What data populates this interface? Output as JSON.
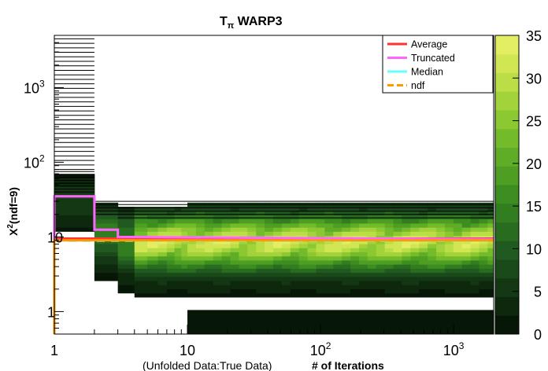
{
  "chart_data": {
    "type": "heatmap",
    "title": "T",
    "title_subscript": "π",
    "title_suffix": " WARP3",
    "xlabel_prefix": "(Unfolded Data:True Data)",
    "xlabel": "# of Iterations",
    "ylabel": "χ²(ndf=9)",
    "ylabel_parts": {
      "main": "X",
      "sup": "2",
      "rest": "(ndf=9)"
    },
    "x_scale": "log",
    "y_scale": "log",
    "xlim": [
      1,
      2000
    ],
    "ylim": [
      0.5,
      5000
    ],
    "x_ticks": [
      {
        "value": 1,
        "base": "1",
        "exp": ""
      },
      {
        "value": 10,
        "base": "10",
        "exp": ""
      },
      {
        "value": 100,
        "base": "10",
        "exp": "2"
      },
      {
        "value": 1000,
        "base": "10",
        "exp": "3"
      }
    ],
    "y_ticks": [
      {
        "value": 1,
        "base": "1",
        "exp": ""
      },
      {
        "value": 10,
        "base": "10",
        "exp": ""
      },
      {
        "value": 100,
        "base": "10",
        "exp": "2"
      },
      {
        "value": 1000,
        "base": "10",
        "exp": "3"
      }
    ],
    "colorbar": {
      "min": 0,
      "max": 35,
      "ticks": [
        "0",
        "5",
        "10",
        "15",
        "20",
        "25",
        "30",
        "35"
      ],
      "colors": [
        "#071707",
        "#0d280d",
        "#133813",
        "#1a491a",
        "#205a20",
        "#286c1f",
        "#327d1f",
        "#3d8e20",
        "#4d9e22",
        "#5fad26",
        "#74bb2b",
        "#8bc832",
        "#a3d33a",
        "#bbdd45",
        "#d1e653",
        "#e4ee63"
      ]
    },
    "series": [
      {
        "name": "Average",
        "color": "#ff3333",
        "x": [
          1,
          2,
          3,
          2000
        ],
        "y": [
          9.5,
          9.5,
          9.5,
          9.5
        ]
      },
      {
        "name": "Truncated",
        "color": "#ff66ff",
        "x": [
          1,
          2,
          3,
          2000
        ],
        "y": [
          35,
          12.5,
          10,
          9.3
        ]
      },
      {
        "name": "Median",
        "color": "#66ffff",
        "x": [
          1,
          2000
        ],
        "y": [
          8.9,
          8.9
        ]
      },
      {
        "name": "ndf",
        "color": "#ff9900",
        "x": [
          1,
          2000
        ],
        "y": [
          9,
          9
        ]
      }
    ],
    "legend_position": "top-right",
    "grid": false
  }
}
